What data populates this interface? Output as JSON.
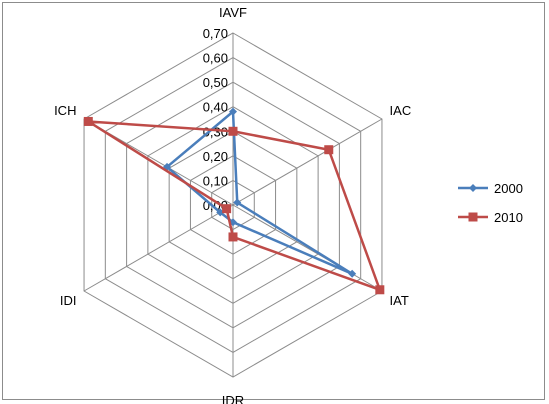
{
  "chart_data": {
    "type": "radar",
    "axes": [
      "IAVF",
      "IAC",
      "IAT",
      "IDR",
      "IDI",
      "ICH"
    ],
    "ticks": [
      "0,00",
      "0,10",
      "0,20",
      "0,30",
      "0,40",
      "0,50",
      "0,60",
      "0,70"
    ],
    "rlim": [
      0,
      0.7
    ],
    "grid": true,
    "legend_position": "right",
    "series": [
      {
        "name": "2000",
        "color": "#4a7ebb",
        "marker": "diamond",
        "values": [
          0.38,
          0.02,
          0.56,
          0.07,
          0.06,
          0.31
        ]
      },
      {
        "name": "2010",
        "color": "#be4b48",
        "marker": "square",
        "values": [
          0.3,
          0.45,
          0.69,
          0.13,
          0.03,
          0.68
        ]
      }
    ]
  }
}
